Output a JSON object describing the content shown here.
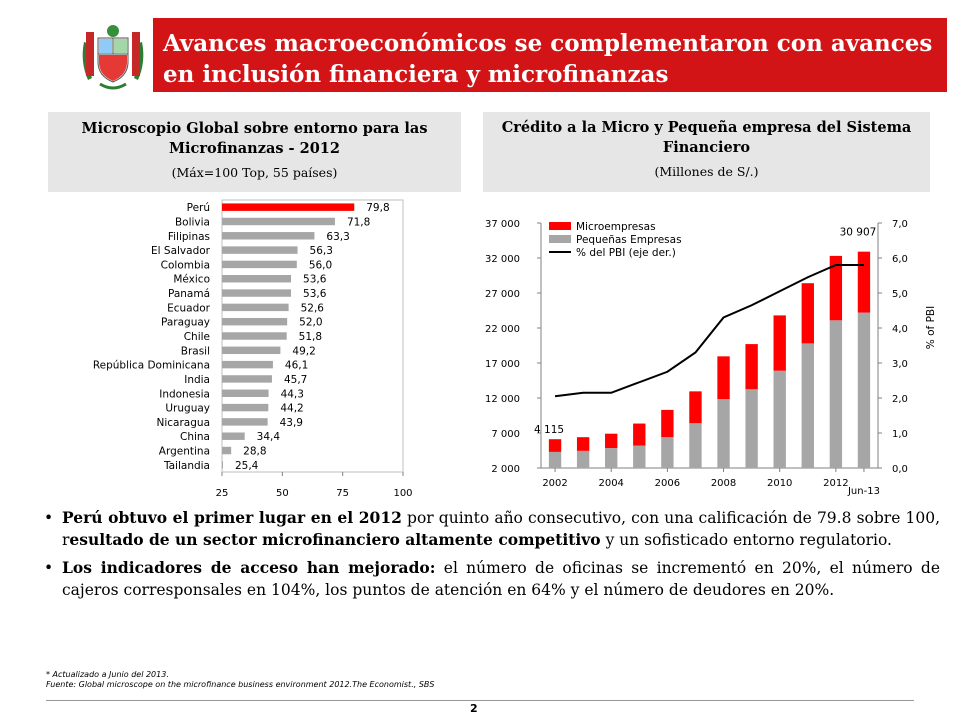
{
  "slide": {
    "title": "Avances macroeconómicos se complementaron con avances en inclusión financiera y microfinanzas",
    "page_number": "2",
    "accent_color": "#d21417"
  },
  "left_panel": {
    "title": "Microscopio Global sobre entorno para las Microfinanzas - 2012",
    "subtitle": "(Máx=100 Top, 55 países)"
  },
  "right_panel": {
    "title": "Crédito a la Micro y Pequeña empresa del Sistema Financiero",
    "subtitle": "(Millones de S/.)"
  },
  "chart_data": [
    {
      "type": "bar",
      "orientation": "horizontal",
      "categories": [
        "Perú",
        "Bolivia",
        "Filipinas",
        "El Salvador",
        "Colombia",
        "México",
        "Panamá",
        "Ecuador",
        "Paraguay",
        "Chile",
        "Brasil",
        "República Dominicana",
        "India",
        "Indonesia",
        "Uruguay",
        "Nicaragua",
        "China",
        "Argentina",
        "Tailandia"
      ],
      "values": [
        79.8,
        71.8,
        63.3,
        56.3,
        56.0,
        53.6,
        53.6,
        52.6,
        52.0,
        51.8,
        49.2,
        46.1,
        45.7,
        44.3,
        44.2,
        43.9,
        34.4,
        28.8,
        25.4
      ],
      "value_labels": [
        "79,8",
        "71,8",
        "63,3",
        "56,3",
        "56,0",
        "53,6",
        "53,6",
        "52,6",
        "52,0",
        "51,8",
        "49,2",
        "46,1",
        "45,7",
        "44,3",
        "44,2",
        "43,9",
        "34,4",
        "28,8",
        "25,4"
      ],
      "xlim": [
        25,
        100
      ],
      "x_ticks": [
        "25",
        "50",
        "75",
        "100"
      ],
      "highlight_color": "#ff0000",
      "bar_color": "#a6a6a6"
    },
    {
      "type": "bar",
      "stacked": true,
      "categories": [
        "2002",
        "2003",
        "2004",
        "2005",
        "2006",
        "2007",
        "2008",
        "2009",
        "2010",
        "2011",
        "2012",
        "Jun-13"
      ],
      "x_tick_labels": [
        "2002",
        "2004",
        "2006",
        "2008",
        "2010",
        "2012",
        "Jun-13"
      ],
      "series": [
        {
          "name": "Microempresas",
          "color": "#ff0000",
          "values": [
            1815,
            1950,
            2050,
            3150,
            3900,
            4550,
            6100,
            6450,
            7900,
            8600,
            9200,
            8700
          ]
        },
        {
          "name": "Pequeñas Empresas",
          "color": "#a6a6a6",
          "values": [
            2300,
            2450,
            2850,
            3200,
            4400,
            6400,
            9850,
            11250,
            13900,
            17800,
            21100,
            22207
          ]
        }
      ],
      "data_labels": [
        {
          "index": 0,
          "text": "4 115"
        },
        {
          "index": 11,
          "text": "30 907"
        }
      ],
      "ylim": [
        2000,
        37000
      ],
      "y_ticks": [
        "2 000",
        "7 000",
        "12 000",
        "17 000",
        "22 000",
        "27 000",
        "32 000",
        "37 000"
      ],
      "secondary_axis": {
        "label": "% of PBI",
        "ylim": [
          0,
          7
        ],
        "ticks": [
          "0,0",
          "1,0",
          "2,0",
          "3,0",
          "4,0",
          "5,0",
          "6,0",
          "7,0"
        ]
      },
      "line_series": {
        "name": "% del PBI (eje der.)",
        "color": "#000000",
        "axis": "secondary",
        "values": [
          2.05,
          2.15,
          2.15,
          2.45,
          2.75,
          3.3,
          4.3,
          4.65,
          5.05,
          5.45,
          5.8,
          5.8
        ]
      },
      "legend": "top-left"
    }
  ],
  "bullets": [
    {
      "b1": "Perú obtuvo el primer lugar en el 2012",
      "t1": " por quinto año consecutivo, con una calificación de 79.8 sobre 100, r",
      "b2": "esultado de un sector microfinanciero altamente competitivo",
      "t2": " y un sofisticado entorno regulatorio."
    },
    {
      "b1": "Los indicadores de acceso han mejorado:",
      "t1": " el número de oficinas se incrementó en 20%, el número de cajeros corresponsales en 104%, los puntos de atención en 64% y el número de deudores en 20%.",
      "b2": "",
      "t2": ""
    }
  ],
  "notes": {
    "line1": "* Actualizado a Junio del  2013.",
    "line2": "Fuente: Global microscope on the microfinance business environment 2012.The Economist.,  SBS"
  }
}
